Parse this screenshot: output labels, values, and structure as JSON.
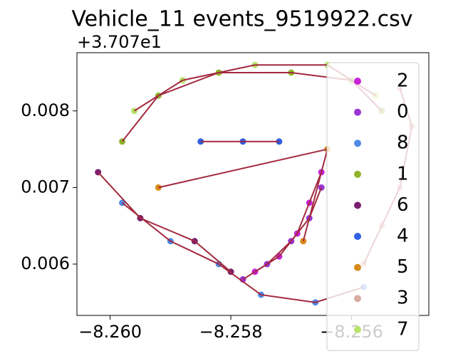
{
  "chart_data": {
    "type": "scatter",
    "title": "Vehicle_11 events_9519922.csv",
    "y_offset_text": "+3.707e1",
    "xlim": [
      -8.26055,
      -8.25472
    ],
    "ylim": [
      0.00533,
      0.00876
    ],
    "xticks": [
      {
        "value": -8.26,
        "label": "−8.260"
      },
      {
        "value": -8.258,
        "label": "−8.258"
      },
      {
        "value": -8.256,
        "label": "−8.256"
      }
    ],
    "yticks": [
      0.006,
      0.007,
      0.008
    ],
    "line_color": "#a3293f",
    "legend_position": "upper right",
    "series": [
      {
        "name": "2",
        "color": "#c724d8",
        "x": [
          -8.2565,
          -8.2567,
          -8.2569,
          -8.2572,
          -8.2576
        ],
        "y": [
          0.0072,
          0.0068,
          0.0064,
          0.0061,
          0.0059
        ]
      },
      {
        "name": "0",
        "color": "#9a34d6",
        "x": [
          -8.2578,
          -8.2574,
          -8.257,
          -8.2567,
          -8.2565
        ],
        "y": [
          0.0058,
          0.006,
          0.0063,
          0.0066,
          0.007
        ]
      },
      {
        "name": "8",
        "color": "#4f8ae6",
        "x": [
          -8.2598,
          -8.259,
          -8.2582,
          -8.2575,
          -8.2566,
          -8.2558
        ],
        "y": [
          0.0068,
          0.0063,
          0.006,
          0.0056,
          0.0055,
          0.0057
        ]
      },
      {
        "name": "1",
        "color": "#8fb52c",
        "x": [
          -8.2598,
          -8.2592,
          -8.2582,
          -8.257,
          -8.256,
          -8.2555
        ],
        "y": [
          0.0076,
          0.0082,
          0.0085,
          0.0085,
          0.0084,
          0.008
        ]
      },
      {
        "name": "6",
        "color": "#7b1f70",
        "x": [
          -8.2602,
          -8.2595,
          -8.2586,
          -8.258
        ],
        "y": [
          0.0072,
          0.0066,
          0.0063,
          0.0059
        ]
      },
      {
        "name": "4",
        "color": "#2f60e3",
        "x": [
          -8.2585,
          -8.2578,
          -8.2572
        ],
        "y": [
          0.0076,
          0.0076,
          0.0076
        ]
      },
      {
        "name": "5",
        "color": "#d98a1a",
        "x": [
          -8.2592,
          -8.2564,
          -8.2568
        ],
        "y": [
          0.007,
          0.0075,
          0.0063
        ]
      },
      {
        "name": "3",
        "color": "#d9aca0",
        "x": [
          -8.2552,
          -8.255,
          -8.2552,
          -8.2555,
          -8.2558
        ],
        "y": [
          0.0083,
          0.0078,
          0.007,
          0.0065,
          0.006
        ]
      },
      {
        "name": "7",
        "color": "#b7e36a",
        "x": [
          -8.2596,
          -8.2588,
          -8.2576,
          -8.2564,
          -8.2556
        ],
        "y": [
          0.008,
          0.0084,
          0.0086,
          0.0086,
          0.0082
        ]
      }
    ]
  }
}
